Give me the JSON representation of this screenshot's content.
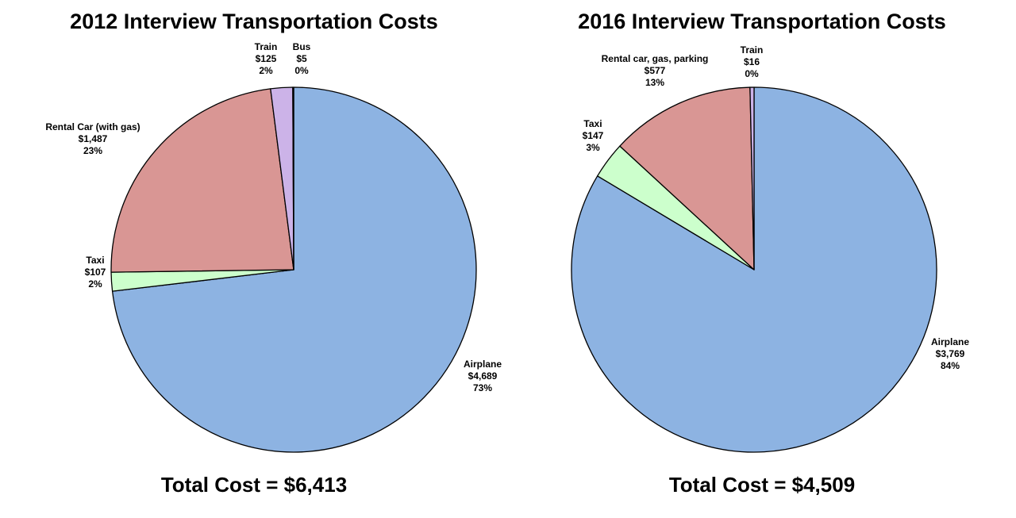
{
  "chart_data": [
    {
      "type": "pie",
      "title": "2012 Interview Transportation Costs",
      "footer": "Total Cost = $6,413",
      "slices": [
        {
          "name": "Airplane",
          "value": 4689,
          "value_label": "$4,689",
          "pct_label": "73%",
          "color": "#8db3e2"
        },
        {
          "name": "Taxi",
          "value": 107,
          "value_label": "$107",
          "pct_label": "2%",
          "color": "#ccffcc"
        },
        {
          "name": "Rental Car (with gas)",
          "value": 1487,
          "value_label": "$1,487",
          "pct_label": "23%",
          "color": "#d99694"
        },
        {
          "name": "Train",
          "value": 125,
          "value_label": "$125",
          "pct_label": "2%",
          "color": "#ccb3e8"
        },
        {
          "name": "Bus",
          "value": 5,
          "value_label": "$5",
          "pct_label": "0%",
          "color": "#9999ff"
        }
      ]
    },
    {
      "type": "pie",
      "title": "2016 Interview Transportation Costs",
      "footer": "Total Cost = $4,509",
      "slices": [
        {
          "name": "Airplane",
          "value": 3769,
          "value_label": "$3,769",
          "pct_label": "84%",
          "color": "#8db3e2"
        },
        {
          "name": "Taxi",
          "value": 147,
          "value_label": "$147",
          "pct_label": "3%",
          "color": "#ccffcc"
        },
        {
          "name": "Rental car, gas, parking",
          "value": 577,
          "value_label": "$577",
          "pct_label": "13%",
          "color": "#d99694"
        },
        {
          "name": "Train",
          "value": 16,
          "value_label": "$16",
          "pct_label": "0%",
          "color": "#ccb3e8"
        }
      ]
    }
  ]
}
